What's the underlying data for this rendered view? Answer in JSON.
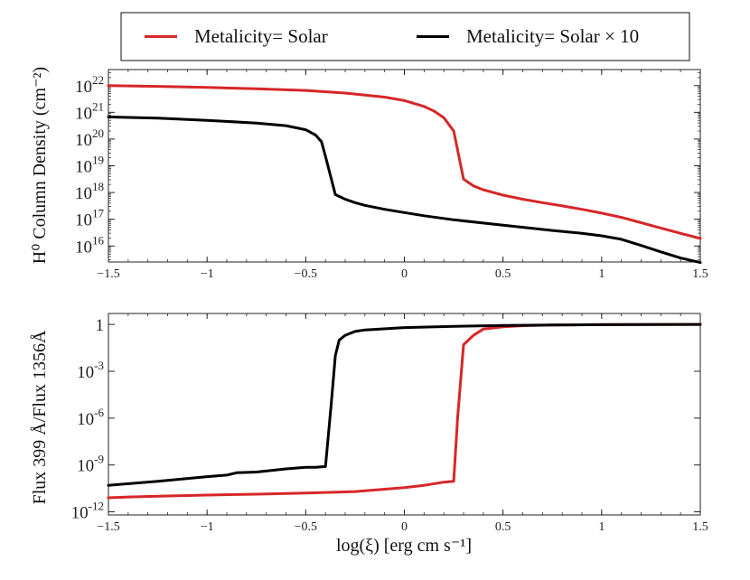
{
  "chart_data": {
    "legend": {
      "placement": "top-center",
      "entries": [
        {
          "label": "Metalicity= Solar",
          "color": "#d62728"
        },
        {
          "label": "Metalicity= Solar × 10",
          "color": "#000000"
        }
      ]
    },
    "xlabel": "log(ξ) [erg cm s⁻¹]",
    "xlim": [
      -1.5,
      1.5
    ],
    "xticks": [
      "−1.5",
      "−1",
      "−0.5",
      "0",
      "0.5",
      "1",
      "1.5"
    ],
    "xtick_values": [
      -1.5,
      -1,
      -0.5,
      0,
      0.5,
      1,
      1.5
    ],
    "panels": [
      {
        "type": "line",
        "yscale": "log",
        "ylabel": "H⁰ Column Density (cm⁻²)",
        "ylim_log10": [
          15.4,
          22.6
        ],
        "yticks": [
          {
            "exp": 22,
            "base": "10",
            "sup": "22"
          },
          {
            "exp": 21,
            "base": "10",
            "sup": "21"
          },
          {
            "exp": 20,
            "base": "10",
            "sup": "20"
          },
          {
            "exp": 19,
            "base": "10",
            "sup": "19"
          },
          {
            "exp": 18,
            "base": "10",
            "sup": "18"
          },
          {
            "exp": 17,
            "base": "10",
            "sup": "17"
          },
          {
            "exp": 16,
            "base": "10",
            "sup": "16"
          }
        ],
        "series": [
          {
            "name": "Metalicity= Solar",
            "color": "#d62728",
            "x": [
              -1.5,
              -1.25,
              -1.0,
              -0.75,
              -0.5,
              -0.3,
              -0.1,
              0.0,
              0.1,
              0.15,
              0.2,
              0.25,
              0.3,
              0.35,
              0.4,
              0.5,
              0.6,
              0.7,
              0.8,
              0.9,
              1.0,
              1.1,
              1.2,
              1.3,
              1.4,
              1.5
            ],
            "log10_y": [
              22.0,
              21.97,
              21.93,
              21.88,
              21.82,
              21.72,
              21.57,
              21.44,
              21.22,
              21.05,
              20.8,
              20.3,
              18.5,
              18.25,
              18.1,
              17.9,
              17.75,
              17.62,
              17.5,
              17.37,
              17.23,
              17.07,
              16.87,
              16.67,
              16.47,
              16.28
            ]
          },
          {
            "name": "Metalicity= Solar × 10",
            "color": "#000000",
            "x": [
              -1.5,
              -1.25,
              -1.0,
              -0.75,
              -0.6,
              -0.5,
              -0.45,
              -0.42,
              -0.4,
              -0.37,
              -0.35,
              -0.3,
              -0.25,
              -0.2,
              -0.1,
              0.0,
              0.1,
              0.25,
              0.5,
              0.75,
              0.9,
              1.0,
              1.1,
              1.2,
              1.3,
              1.4,
              1.5
            ],
            "log10_y": [
              20.83,
              20.78,
              20.7,
              20.6,
              20.5,
              20.35,
              20.15,
              19.9,
              19.35,
              18.5,
              17.92,
              17.75,
              17.62,
              17.52,
              17.37,
              17.25,
              17.13,
              16.98,
              16.78,
              16.58,
              16.47,
              16.38,
              16.25,
              16.02,
              15.78,
              15.55,
              15.38
            ]
          }
        ]
      },
      {
        "type": "line",
        "yscale": "log",
        "ylabel": "Flux 399 Å/Flux 1356Å",
        "ylim_log10": [
          -12.2,
          0.7
        ],
        "yticks": [
          {
            "exp": 0,
            "base": "1",
            "sup": ""
          },
          {
            "exp": -3,
            "base": "10",
            "sup": "-3"
          },
          {
            "exp": -6,
            "base": "10",
            "sup": "-6"
          },
          {
            "exp": -9,
            "base": "10",
            "sup": "-9"
          },
          {
            "exp": -12,
            "base": "10",
            "sup": "-12"
          }
        ],
        "series": [
          {
            "name": "Metalicity= Solar",
            "color": "#d62728",
            "x": [
              -1.5,
              -1.4,
              -1.25,
              -1.0,
              -0.75,
              -0.5,
              -0.25,
              -0.1,
              0.0,
              0.1,
              0.2,
              0.25,
              0.27,
              0.3,
              0.35,
              0.4,
              0.5,
              0.6,
              0.75,
              1.0,
              1.25,
              1.5
            ],
            "log10_y": [
              -11.1,
              -11.05,
              -11.0,
              -10.93,
              -10.87,
              -10.8,
              -10.7,
              -10.55,
              -10.45,
              -10.3,
              -10.1,
              -10.05,
              -6.0,
              -1.3,
              -0.7,
              -0.3,
              -0.15,
              -0.08,
              -0.04,
              -0.01,
              0.0,
              0.0
            ]
          },
          {
            "name": "Metalicity= Solar × 10",
            "color": "#000000",
            "x": [
              -1.5,
              -1.25,
              -1.0,
              -0.9,
              -0.85,
              -0.75,
              -0.6,
              -0.5,
              -0.45,
              -0.4,
              -0.37,
              -0.35,
              -0.33,
              -0.3,
              -0.25,
              -0.2,
              0.0,
              0.25,
              0.5,
              0.75,
              1.0,
              1.25,
              1.5
            ],
            "log10_y": [
              -10.3,
              -10.05,
              -9.75,
              -9.65,
              -9.5,
              -9.45,
              -9.25,
              -9.15,
              -9.15,
              -9.1,
              -5.0,
              -2.0,
              -1.0,
              -0.7,
              -0.45,
              -0.35,
              -0.2,
              -0.12,
              -0.07,
              -0.04,
              -0.02,
              -0.01,
              0.0
            ]
          }
        ]
      }
    ]
  }
}
